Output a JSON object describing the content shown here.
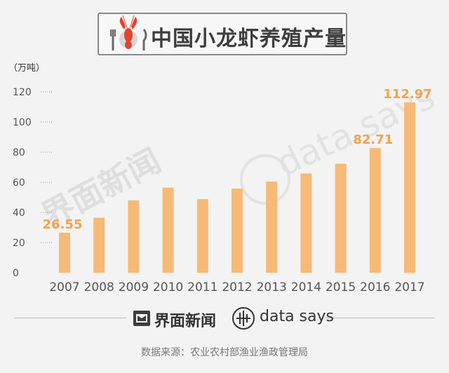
{
  "title": "中国小龙虾养殖产量",
  "unit": "（万吨）",
  "watermarks": {
    "left": "界面新闻",
    "right": "data says"
  },
  "brands": {
    "jiemian": "界面新闻",
    "datasays": "data says"
  },
  "source": "数据来源：农业农村部渔业渔政管理局",
  "colors": {
    "bar": "#f7b977",
    "label": "#f2a24f",
    "text": "#555555"
  },
  "chart_data": {
    "type": "bar",
    "categories": [
      "2007",
      "2008",
      "2009",
      "2010",
      "2011",
      "2012",
      "2013",
      "2014",
      "2015",
      "2016",
      "2017"
    ],
    "values": [
      26.55,
      36.5,
      48,
      56.5,
      48.8,
      55.8,
      60.5,
      65.9,
      72.3,
      82.71,
      112.97
    ],
    "data_labels": {
      "0": "26.55",
      "9": "82.71",
      "10": "112.97"
    },
    "yticks": [
      0,
      20,
      40,
      60,
      80,
      100,
      120
    ],
    "ylim": [
      0,
      125
    ]
  }
}
